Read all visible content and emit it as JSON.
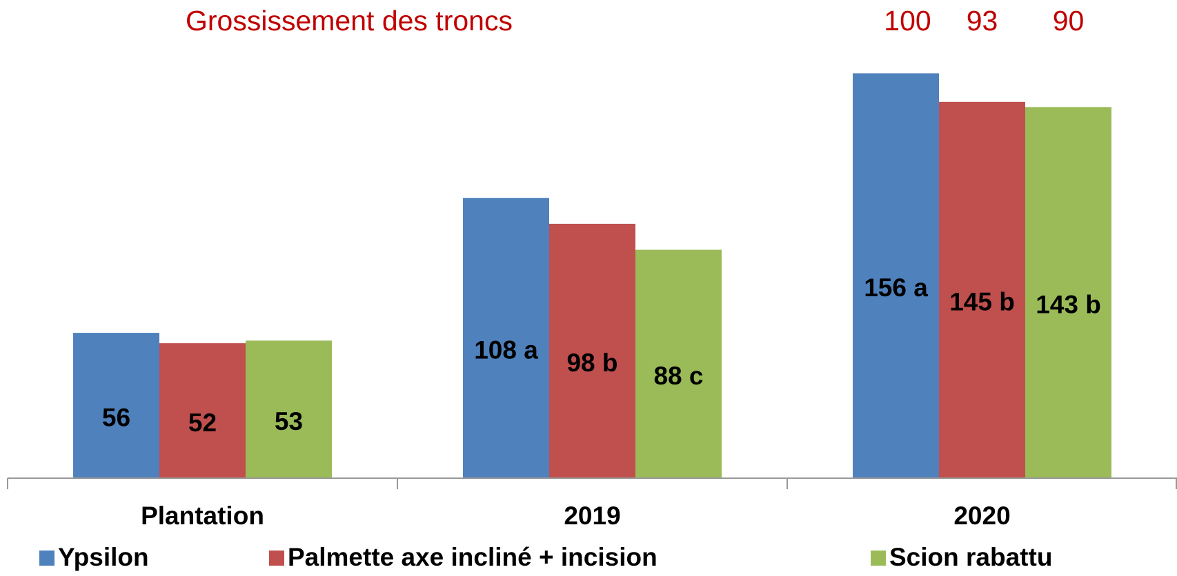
{
  "chart_data": {
    "type": "bar",
    "title": "Grossissement des troncs",
    "categories": [
      "Plantation",
      "2019",
      "2020"
    ],
    "series": [
      {
        "name": "Ypsilon",
        "color": "#4f81bd",
        "values": [
          56,
          108,
          156
        ],
        "value_labels": [
          "56",
          "108 a",
          "156 a"
        ]
      },
      {
        "name": "Palmette axe incliné + incision",
        "color": "#c0504d",
        "values": [
          52,
          98,
          145
        ],
        "value_labels": [
          "52",
          "98 b",
          "145 b"
        ]
      },
      {
        "name": "Scion rabattu",
        "color": "#9bbb59",
        "values": [
          53,
          88,
          143
        ],
        "value_labels": [
          "53",
          "88 c",
          "143 b"
        ]
      }
    ],
    "annotations": [
      100,
      93,
      90
    ],
    "ylim": [
      0,
      180
    ]
  }
}
